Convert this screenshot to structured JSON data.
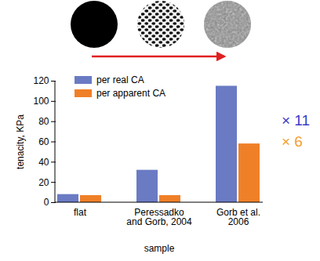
{
  "chart_data": {
    "type": "bar",
    "categories": [
      "flat",
      "Peressadko\nand Gorb, 2004",
      "Gorb et al.\n2006"
    ],
    "series": [
      {
        "name": "per real CA",
        "color": "#6a7bc4",
        "values": [
          8,
          32,
          115
        ]
      },
      {
        "name": "per apparent CA",
        "color": "#f08028",
        "values": [
          7,
          7,
          58
        ]
      }
    ],
    "xlabel": "sample",
    "ylabel": "tenacity, KPa",
    "ylim": [
      0,
      120
    ],
    "yticks": [
      0,
      20,
      40,
      60,
      80,
      100,
      120
    ],
    "legend": "top-left",
    "annotations": [
      {
        "text": "× 11",
        "color": "#3c3cc8"
      },
      {
        "text": "× 6",
        "color": "#f5a030"
      }
    ]
  }
}
